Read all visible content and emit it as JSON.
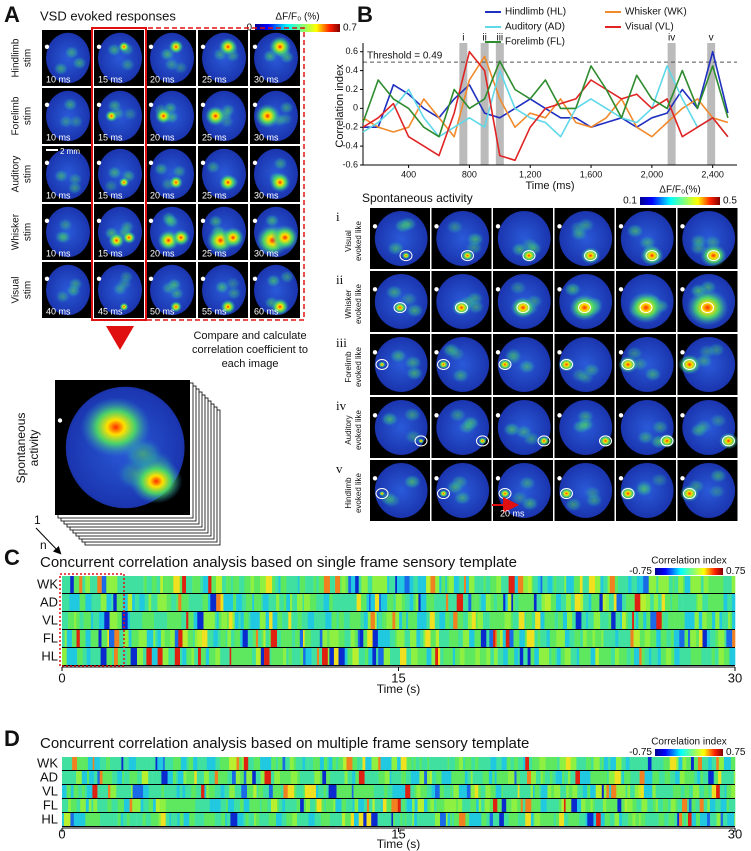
{
  "panel_a": {
    "label": "A",
    "title": "VSD evoked responses",
    "colorbar_label": "ΔF/F₀ (%)",
    "colorbar_min": 0,
    "colorbar_max": 0.7,
    "rows": [
      {
        "label": [
          "Hindlimb",
          "stim"
        ],
        "times": [
          "10 ms",
          "15 ms",
          "20 ms",
          "25 ms",
          "30 ms"
        ]
      },
      {
        "label": [
          "Forelimb",
          "stim"
        ],
        "times": [
          "10 ms",
          "15 ms",
          "20 ms",
          "25 ms",
          "30 ms"
        ]
      },
      {
        "label": [
          "Auditory",
          "stim"
        ],
        "times": [
          "10 ms",
          "15 ms",
          "20 ms",
          "25 ms",
          "30 ms"
        ]
      },
      {
        "label": [
          "Whisker",
          "stim"
        ],
        "times": [
          "10 ms",
          "15 ms",
          "20 ms",
          "25 ms",
          "30 ms"
        ]
      },
      {
        "label": [
          "Visual",
          "stim"
        ],
        "times": [
          "40 ms",
          "45 ms",
          "50 ms",
          "55 ms",
          "60 ms"
        ]
      }
    ],
    "scale_bar": "2 mm",
    "note": [
      "Compare and calculate",
      "correlation coefficient to",
      "each image"
    ],
    "stack_label": [
      "Spontaneous",
      "activity"
    ],
    "stack_first": "1",
    "stack_last": "n"
  },
  "panel_b": {
    "label": "B",
    "images_title": "Spontaneous activity",
    "colorbar_label": "ΔF/F₀(%)",
    "colorbar_min": 0.1,
    "colorbar_max": 0.5,
    "rows": [
      {
        "numeral": "i",
        "label": [
          "Visual",
          "evoked like"
        ]
      },
      {
        "numeral": "ii",
        "label": [
          "Whisker",
          "evoked like"
        ]
      },
      {
        "numeral": "iii",
        "label": [
          "Forelimb",
          "evoked like"
        ]
      },
      {
        "numeral": "iv",
        "label": [
          "Auditory",
          "evoked like"
        ]
      },
      {
        "numeral": "v",
        "label": [
          "Hindlimb",
          "evoked like"
        ]
      }
    ],
    "time_bar": "20 ms"
  },
  "chart_data": {
    "type": "line",
    "xlabel": "Time (ms)",
    "ylabel": "Correlation index",
    "x": [
      100,
      200,
      300,
      400,
      500,
      600,
      700,
      800,
      900,
      1000,
      1100,
      1200,
      1300,
      1400,
      1500,
      1600,
      1700,
      1800,
      1900,
      2000,
      2100,
      2200,
      2300,
      2400,
      2500
    ],
    "xlim": [
      100,
      2560
    ],
    "xticks": [
      400,
      800,
      {
        "value": 1200,
        "label": "1,200"
      },
      {
        "value": 1600,
        "label": "1,600"
      },
      {
        "value": 2000,
        "label": "2,000"
      },
      {
        "value": 2400,
        "label": "2,400"
      }
    ],
    "ylim": [
      -0.6,
      0.65
    ],
    "yticks": [
      -0.6,
      -0.4,
      -0.2,
      0,
      0.2,
      0.4,
      0.6
    ],
    "threshold": {
      "value": 0.49,
      "label": "Threshold = 0.49"
    },
    "highlights": [
      {
        "label": "i",
        "x": 760
      },
      {
        "label": "ii",
        "x": 900
      },
      {
        "label": "iii",
        "x": 1000
      },
      {
        "label": "iv",
        "x": 2130
      },
      {
        "label": "v",
        "x": 2390
      }
    ],
    "series": [
      {
        "name": "Hindlimb (HL)",
        "color": "#1f2fbf",
        "values": [
          -0.2,
          -0.2,
          0.25,
          0.15,
          0.0,
          -0.1,
          0.1,
          0.25,
          -0.05,
          -0.1,
          0.0,
          0.1,
          0.0,
          -0.1,
          -0.1,
          -0.2,
          -0.15,
          -0.1,
          -0.2,
          -0.1,
          -0.05,
          0.2,
          0.0,
          0.6,
          -0.05
        ]
      },
      {
        "name": "Whisker (WK)",
        "color": "#f08a2c",
        "values": [
          -0.1,
          -0.2,
          -0.25,
          -0.2,
          0.1,
          -0.1,
          -0.3,
          0.3,
          0.55,
          0.1,
          -0.2,
          -0.05,
          -0.1,
          0.1,
          -0.15,
          -0.2,
          -0.1,
          0.1,
          -0.2,
          -0.3,
          -0.15,
          0.0,
          0.1,
          -0.1,
          -0.15
        ]
      },
      {
        "name": "Auditory (AD)",
        "color": "#5fd8e8",
        "values": [
          -0.25,
          -0.15,
          0.0,
          0.2,
          -0.1,
          -0.3,
          -0.2,
          -0.1,
          -0.2,
          0.4,
          0.0,
          -0.1,
          -0.15,
          -0.3,
          0.0,
          0.1,
          0.0,
          -0.1,
          -0.15,
          0.0,
          0.45,
          0.1,
          -0.2,
          -0.1,
          -0.3
        ]
      },
      {
        "name": "Visual (VL)",
        "color": "#e02424",
        "values": [
          -0.2,
          -0.1,
          0.05,
          -0.3,
          -0.4,
          -0.5,
          -0.05,
          0.6,
          0.4,
          -0.5,
          -0.55,
          -0.2,
          0.0,
          0.05,
          0.1,
          0.3,
          0.2,
          0.1,
          0.15,
          0.0,
          0.1,
          -0.3,
          -0.2,
          -0.1,
          -0.3
        ]
      },
      {
        "name": "Forelimb (FL)",
        "color": "#2e8b2e",
        "values": [
          -0.15,
          0.3,
          0.1,
          0.0,
          -0.2,
          -0.3,
          0.2,
          0.0,
          0.1,
          0.5,
          0.2,
          0.1,
          0.3,
          0.0,
          0.0,
          0.45,
          0.2,
          -0.1,
          0.35,
          0.1,
          0.0,
          0.4,
          0.0,
          0.45,
          -0.1
        ]
      }
    ]
  },
  "panel_c": {
    "label": "C",
    "title": "Concurrent correlation analysis based on single frame sensory template",
    "colorbar_label": "Correlation index",
    "colorbar_min": -0.75,
    "colorbar_max": 0.75,
    "rows": [
      "WK",
      "AD",
      "VL",
      "FL",
      "HL"
    ],
    "xlim": [
      0,
      30
    ],
    "xticks": [
      0,
      15,
      30
    ],
    "xlabel": "Time (s)"
  },
  "panel_d": {
    "label": "D",
    "title": "Concurrent correlation analysis based on multiple frame sensory template",
    "colorbar_label": "Correlation index",
    "colorbar_min": -0.75,
    "colorbar_max": 0.75,
    "rows": [
      "WK",
      "AD",
      "VL",
      "FL",
      "HL"
    ],
    "xlim": [
      0,
      30
    ],
    "xticks": [
      0,
      15,
      30
    ],
    "xlabel": "Time (s)"
  }
}
